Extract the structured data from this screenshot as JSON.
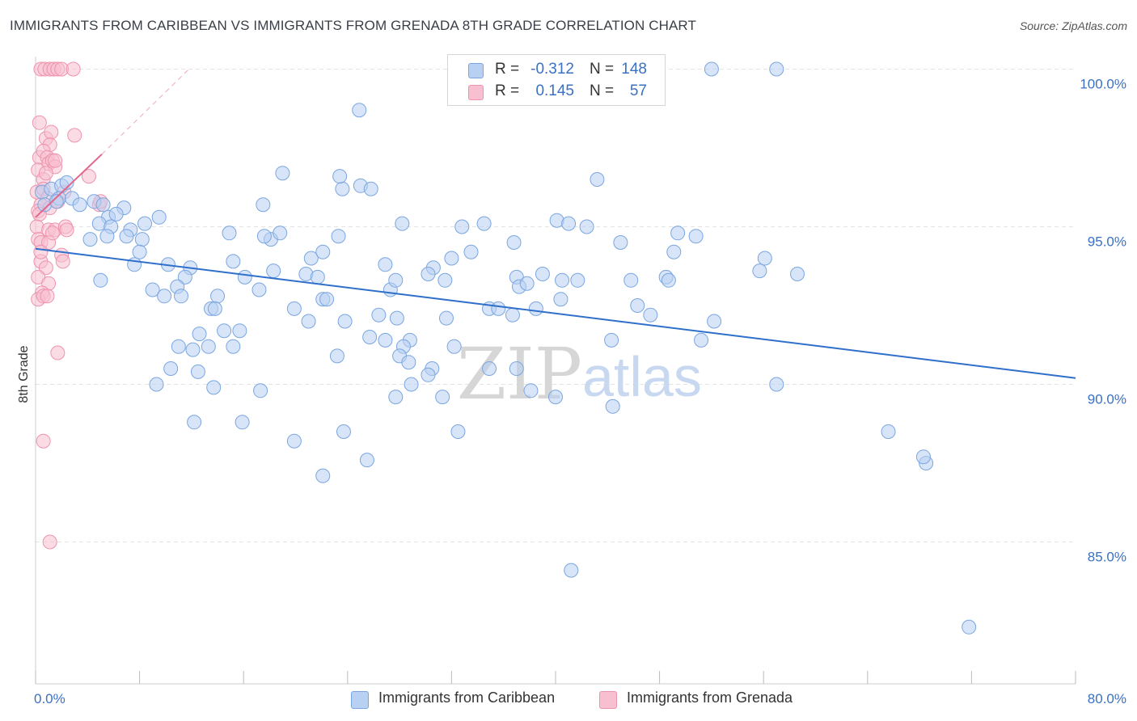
{
  "title": "IMMIGRANTS FROM CARIBBEAN VS IMMIGRANTS FROM GRENADA 8TH GRADE CORRELATION CHART",
  "source": "Source: ZipAtlas.com",
  "watermark": {
    "zip": "ZIP",
    "atlas": "atlas"
  },
  "colors": {
    "blue_fill": "#b8d0f2",
    "blue_stroke": "#7aa6e0",
    "blue_line": "#2f6fcc",
    "pink_fill": "#f7bfd0",
    "pink_stroke": "#ee93ae",
    "pink_line": "#e2668d",
    "grid": "#e3e3e3",
    "tick_text": "#3b70c4"
  },
  "legend_top": [
    {
      "r_label": "R =",
      "r_value": "-0.312",
      "n_label": "N =",
      "n_value": "148"
    },
    {
      "r_label": "R =",
      "r_value": "0.145",
      "n_label": "N =",
      "n_value": "57"
    }
  ],
  "legend_bottom": [
    {
      "label": "Immigrants from Caribbean"
    },
    {
      "label": "Immigrants from Grenada"
    }
  ],
  "chart_data": {
    "type": "scatter",
    "title": "IMMIGRANTS FROM CARIBBEAN VS IMMIGRANTS FROM GRENADA 8TH GRADE CORRELATION CHART",
    "xlabel": "",
    "ylabel": "8th Grade",
    "xlim": [
      0,
      80
    ],
    "ylim": [
      80.5,
      100.5
    ],
    "x_tick_labels": [
      "0.0%",
      "80.0%"
    ],
    "y_ticks": [
      85,
      90,
      95,
      100
    ],
    "y_tick_labels": [
      "85.0%",
      "90.0%",
      "95.0%",
      "100.0%"
    ],
    "series": [
      {
        "name": "Immigrants from Caribbean",
        "r": -0.312,
        "n": 148,
        "trend": {
          "x": [
            0,
            80
          ],
          "y": [
            94.3,
            90.2
          ]
        },
        "points": [
          [
            0.5,
            96.1
          ],
          [
            1.2,
            96.2
          ],
          [
            2.0,
            96.3
          ],
          [
            1.8,
            95.9
          ],
          [
            0.7,
            95.7
          ],
          [
            1.6,
            95.8
          ],
          [
            2.4,
            96.4
          ],
          [
            2.8,
            95.9
          ],
          [
            3.4,
            95.7
          ],
          [
            4.5,
            95.8
          ],
          [
            5.2,
            95.7
          ],
          [
            5.6,
            95.3
          ],
          [
            4.9,
            95.1
          ],
          [
            6.8,
            95.6
          ],
          [
            6.2,
            95.4
          ],
          [
            5.8,
            95.0
          ],
          [
            7.3,
            94.9
          ],
          [
            7.0,
            94.7
          ],
          [
            8.4,
            95.1
          ],
          [
            9.5,
            95.3
          ],
          [
            4.2,
            94.6
          ],
          [
            5.5,
            94.7
          ],
          [
            8.2,
            94.6
          ],
          [
            8.0,
            94.2
          ],
          [
            7.6,
            93.8
          ],
          [
            10.2,
            93.8
          ],
          [
            11.9,
            93.7
          ],
          [
            5.0,
            93.3
          ],
          [
            11.5,
            93.4
          ],
          [
            9.0,
            93.0
          ],
          [
            10.9,
            93.1
          ],
          [
            9.9,
            92.8
          ],
          [
            11.2,
            92.8
          ],
          [
            14.0,
            92.8
          ],
          [
            13.5,
            92.4
          ],
          [
            13.8,
            92.4
          ],
          [
            14.5,
            91.7
          ],
          [
            15.7,
            91.7
          ],
          [
            12.6,
            91.6
          ],
          [
            15.2,
            91.2
          ],
          [
            12.1,
            91.1
          ],
          [
            13.3,
            91.2
          ],
          [
            17.2,
            93.0
          ],
          [
            18.1,
            94.6
          ],
          [
            17.6,
            94.7
          ],
          [
            18.8,
            94.8
          ],
          [
            15.2,
            93.9
          ],
          [
            16.1,
            93.4
          ],
          [
            18.3,
            93.6
          ],
          [
            21.2,
            94.0
          ],
          [
            22.1,
            94.2
          ],
          [
            20.8,
            93.5
          ],
          [
            21.7,
            93.4
          ],
          [
            22.1,
            92.7
          ],
          [
            22.4,
            92.7
          ],
          [
            19.9,
            92.4
          ],
          [
            21.0,
            92.0
          ],
          [
            23.8,
            92.0
          ],
          [
            23.3,
            94.7
          ],
          [
            14.9,
            94.8
          ],
          [
            19.0,
            96.7
          ],
          [
            17.5,
            95.7
          ],
          [
            23.6,
            96.2
          ],
          [
            23.4,
            96.6
          ],
          [
            25.0,
            96.3
          ],
          [
            25.8,
            96.2
          ],
          [
            24.9,
            98.7
          ],
          [
            28.2,
            95.1
          ],
          [
            26.4,
            92.2
          ],
          [
            27.8,
            92.1
          ],
          [
            26.9,
            91.4
          ],
          [
            25.7,
            91.5
          ],
          [
            28.8,
            91.4
          ],
          [
            28.3,
            91.2
          ],
          [
            23.2,
            90.9
          ],
          [
            28.0,
            90.9
          ],
          [
            28.7,
            90.7
          ],
          [
            30.5,
            90.5
          ],
          [
            30.2,
            90.3
          ],
          [
            28.9,
            90.0
          ],
          [
            27.7,
            89.6
          ],
          [
            26.9,
            93.8
          ],
          [
            27.3,
            93.0
          ],
          [
            27.7,
            93.3
          ],
          [
            30.6,
            93.7
          ],
          [
            32.0,
            94.0
          ],
          [
            30.2,
            93.5
          ],
          [
            31.5,
            93.3
          ],
          [
            32.2,
            91.2
          ],
          [
            31.6,
            92.1
          ],
          [
            33.5,
            94.2
          ],
          [
            34.5,
            95.1
          ],
          [
            32.8,
            95.0
          ],
          [
            34.9,
            92.4
          ],
          [
            35.6,
            92.4
          ],
          [
            37.0,
            93.4
          ],
          [
            37.2,
            93.1
          ],
          [
            37.8,
            93.2
          ],
          [
            36.7,
            92.2
          ],
          [
            36.8,
            94.5
          ],
          [
            40.1,
            95.2
          ],
          [
            41.0,
            95.1
          ],
          [
            40.5,
            93.3
          ],
          [
            41.7,
            93.3
          ],
          [
            40.4,
            92.7
          ],
          [
            38.5,
            92.4
          ],
          [
            39.0,
            93.5
          ],
          [
            42.4,
            95.0
          ],
          [
            43.2,
            96.5
          ],
          [
            45.0,
            94.5
          ],
          [
            45.8,
            93.3
          ],
          [
            46.3,
            92.5
          ],
          [
            44.3,
            91.4
          ],
          [
            47.3,
            92.2
          ],
          [
            48.5,
            93.4
          ],
          [
            48.7,
            93.3
          ],
          [
            44.4,
            89.3
          ],
          [
            40.0,
            89.6
          ],
          [
            38.1,
            89.8
          ],
          [
            37.0,
            90.5
          ],
          [
            34.9,
            90.5
          ],
          [
            31.3,
            89.6
          ],
          [
            23.7,
            88.5
          ],
          [
            25.5,
            87.6
          ],
          [
            19.9,
            88.2
          ],
          [
            22.1,
            87.1
          ],
          [
            15.9,
            88.8
          ],
          [
            12.2,
            88.8
          ],
          [
            13.7,
            89.9
          ],
          [
            11.0,
            91.2
          ],
          [
            12.5,
            90.4
          ],
          [
            10.4,
            90.5
          ],
          [
            9.3,
            90.0
          ],
          [
            17.3,
            89.8
          ],
          [
            32.5,
            88.5
          ],
          [
            41.2,
            84.1
          ],
          [
            49.1,
            94.2
          ],
          [
            49.4,
            94.8
          ],
          [
            50.8,
            94.7
          ],
          [
            55.7,
            93.6
          ],
          [
            56.1,
            94.0
          ],
          [
            58.6,
            93.5
          ],
          [
            52.2,
            92.0
          ],
          [
            51.2,
            91.4
          ],
          [
            57.0,
            90.0
          ],
          [
            65.6,
            88.5
          ],
          [
            68.5,
            87.5
          ],
          [
            68.3,
            87.7
          ],
          [
            71.8,
            82.3
          ],
          [
            52.0,
            100.0
          ],
          [
            57.0,
            100.0
          ]
        ]
      },
      {
        "name": "Immigrants from Grenada",
        "r": 0.145,
        "n": 57,
        "trend": {
          "x": [
            0,
            5.1
          ],
          "y": [
            95.3,
            97.3
          ]
        },
        "trend_dashed": {
          "x": [
            5.1,
            11.8
          ],
          "y": [
            97.3,
            100.0
          ]
        },
        "points": [
          [
            0.4,
            100.0
          ],
          [
            0.7,
            100.0
          ],
          [
            1.1,
            100.0
          ],
          [
            1.4,
            100.0
          ],
          [
            1.7,
            100.0
          ],
          [
            2.0,
            100.0
          ],
          [
            2.9,
            100.0
          ],
          [
            0.3,
            98.3
          ],
          [
            0.8,
            97.8
          ],
          [
            1.2,
            98.0
          ],
          [
            3.0,
            97.9
          ],
          [
            1.1,
            97.6
          ],
          [
            0.3,
            97.2
          ],
          [
            0.6,
            97.4
          ],
          [
            0.9,
            97.2
          ],
          [
            1.0,
            97.0
          ],
          [
            1.3,
            97.1
          ],
          [
            1.5,
            96.9
          ],
          [
            0.2,
            96.8
          ],
          [
            0.6,
            96.5
          ],
          [
            0.1,
            96.1
          ],
          [
            0.6,
            96.2
          ],
          [
            0.9,
            95.9
          ],
          [
            0.4,
            95.7
          ],
          [
            1.1,
            95.6
          ],
          [
            1.7,
            95.8
          ],
          [
            0.2,
            95.5
          ],
          [
            0.3,
            95.4
          ],
          [
            4.1,
            96.6
          ],
          [
            2.2,
            96.1
          ],
          [
            4.9,
            95.7
          ],
          [
            5.0,
            95.8
          ],
          [
            0.1,
            95.0
          ],
          [
            1.0,
            94.9
          ],
          [
            1.5,
            94.9
          ],
          [
            2.3,
            95.0
          ],
          [
            0.2,
            94.6
          ],
          [
            0.4,
            94.5
          ],
          [
            1.0,
            94.5
          ],
          [
            2.0,
            94.1
          ],
          [
            2.1,
            93.9
          ],
          [
            0.4,
            93.9
          ],
          [
            0.8,
            93.7
          ],
          [
            0.2,
            93.4
          ],
          [
            1.0,
            93.2
          ],
          [
            0.5,
            92.9
          ],
          [
            0.2,
            92.7
          ],
          [
            0.6,
            92.8
          ],
          [
            0.9,
            92.8
          ],
          [
            1.7,
            91.0
          ],
          [
            0.6,
            88.2
          ],
          [
            1.1,
            85.0
          ],
          [
            0.4,
            94.2
          ],
          [
            1.3,
            94.8
          ],
          [
            2.4,
            94.9
          ],
          [
            0.8,
            96.7
          ],
          [
            1.5,
            97.1
          ]
        ]
      }
    ]
  }
}
